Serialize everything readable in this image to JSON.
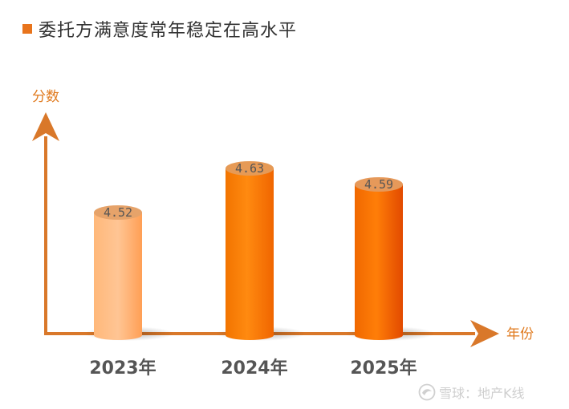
{
  "header": {
    "title": "委托方满意度常年稳定在高水平"
  },
  "watermark": {
    "text": "雪球：地产K线"
  },
  "colors": {
    "accent": "#e8741c",
    "axis": "#d9782a",
    "bar_light": "#ffb070",
    "bar": "#f57c00"
  },
  "chart_data": {
    "type": "bar",
    "title": "委托方满意度常年稳定在高水平",
    "xlabel": "年份",
    "ylabel": "分数",
    "categories": [
      "2023年",
      "2024年",
      "2025年"
    ],
    "values": [
      4.52,
      4.63,
      4.59
    ],
    "value_labels": [
      "4.52",
      "4.63",
      "4.59"
    ],
    "grid": false,
    "legend": "none"
  }
}
